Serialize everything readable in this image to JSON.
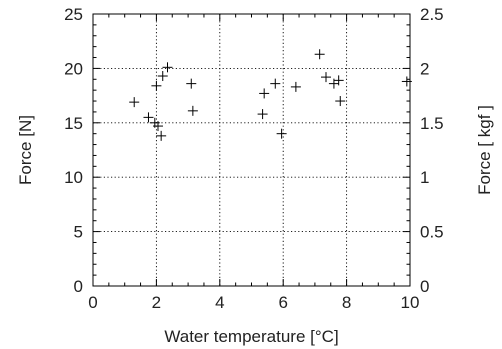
{
  "chart_data": {
    "type": "scatter",
    "title": "",
    "xlabel": "Water temperature [°C]",
    "ylabel": "Force [N]",
    "y2label": "Force [ kgf ]",
    "xlim": [
      0,
      10
    ],
    "ylim": [
      0,
      25
    ],
    "y2lim": [
      0,
      2.5
    ],
    "grid": true,
    "marker": "+",
    "x_ticks": [
      "0",
      "2",
      "4",
      "6",
      "8",
      "10"
    ],
    "y_ticks": [
      "0",
      "5",
      "10",
      "15",
      "20",
      "25"
    ],
    "y2_ticks": [
      "0",
      "0.5",
      "1",
      "1.5",
      "2",
      "2.5"
    ],
    "series": [
      {
        "x": [
          1.3,
          1.75,
          1.95,
          2.0,
          2.05,
          2.15,
          2.2,
          2.35,
          3.1,
          3.15,
          5.35,
          5.4,
          5.75,
          5.95,
          6.4,
          7.15,
          7.35,
          7.6,
          7.75,
          7.8,
          9.9
        ],
        "y": [
          16.9,
          15.5,
          15.0,
          18.4,
          14.7,
          13.8,
          19.3,
          20.1,
          18.6,
          16.1,
          15.8,
          17.7,
          18.6,
          14.0,
          18.3,
          21.3,
          19.2,
          18.6,
          18.9,
          17.0,
          18.8
        ]
      }
    ]
  }
}
